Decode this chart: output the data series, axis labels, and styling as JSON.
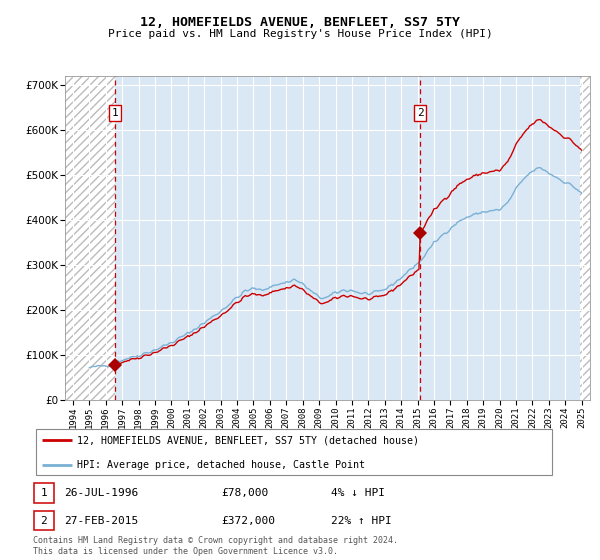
{
  "title": "12, HOMEFIELDS AVENUE, BENFLEET, SS7 5TY",
  "subtitle": "Price paid vs. HM Land Registry's House Price Index (HPI)",
  "legend_line1": "12, HOMEFIELDS AVENUE, BENFLEET, SS7 5TY (detached house)",
  "legend_line2": "HPI: Average price, detached house, Castle Point",
  "table_row1": [
    "1",
    "26-JUL-1996",
    "£78,000",
    "4% ↓ HPI"
  ],
  "table_row2": [
    "2",
    "27-FEB-2015",
    "£372,000",
    "22% ↑ HPI"
  ],
  "footnote": "Contains HM Land Registry data © Crown copyright and database right 2024.\nThis data is licensed under the Open Government Licence v3.0.",
  "sale1_year": 1996.57,
  "sale1_price": 78000,
  "sale2_year": 2015.16,
  "sale2_price": 372000,
  "hatch_color": "#bbbbbb",
  "bg_color": "#dae8f5",
  "grid_color": "#ffffff",
  "red_line_color": "#cc0000",
  "blue_line_color": "#7ab0d4",
  "vline_color": "#cc0000",
  "marker_color": "#aa0000",
  "ylim": [
    0,
    720000
  ],
  "yticks": [
    0,
    100000,
    200000,
    300000,
    400000,
    500000,
    600000,
    700000
  ],
  "xlim_start": 1993.5,
  "xlim_end": 2025.5,
  "xtick_years": [
    1994,
    1995,
    1996,
    1997,
    1998,
    1999,
    2000,
    2001,
    2002,
    2003,
    2004,
    2005,
    2006,
    2007,
    2008,
    2009,
    2010,
    2011,
    2012,
    2013,
    2014,
    2015,
    2016,
    2017,
    2018,
    2019,
    2020,
    2021,
    2022,
    2023,
    2024,
    2025
  ]
}
